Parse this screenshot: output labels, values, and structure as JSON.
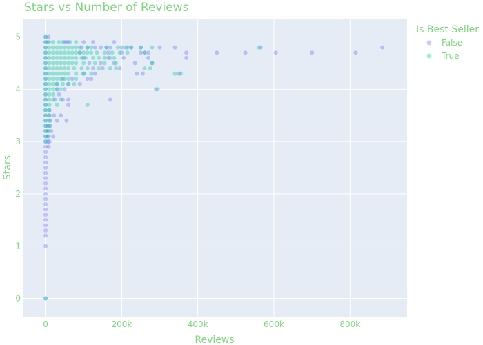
{
  "chart_data": {
    "type": "scatter",
    "title": "Stars vs Number of Reviews",
    "xlabel": "Reviews",
    "ylabel": "Stars",
    "xlim": [
      -60000,
      950000
    ],
    "ylim": [
      -0.35,
      5.35
    ],
    "xticks": [
      0,
      200000,
      400000,
      600000,
      800000
    ],
    "xtick_labels": [
      "0",
      "200k",
      "400k",
      "600k",
      "800k"
    ],
    "yticks": [
      0,
      1,
      2,
      3,
      4,
      5
    ],
    "ytick_labels": [
      "0",
      "1",
      "2",
      "3",
      "4",
      "5"
    ],
    "grid": true,
    "legend": {
      "title": "Is Best Seller",
      "placement": "top-right"
    },
    "series": [
      {
        "name": "False",
        "color": "#636efa",
        "points": [
          [
            0,
            5.0
          ],
          [
            0,
            4.9
          ],
          [
            0,
            4.8
          ],
          [
            0,
            4.7
          ],
          [
            0,
            4.6
          ],
          [
            0,
            4.5
          ],
          [
            0,
            4.4
          ],
          [
            0,
            4.3
          ],
          [
            0,
            4.2
          ],
          [
            0,
            4.1
          ],
          [
            0,
            4.0
          ],
          [
            0,
            3.9
          ],
          [
            0,
            3.8
          ],
          [
            0,
            3.7
          ],
          [
            0,
            3.6
          ],
          [
            0,
            3.5
          ],
          [
            0,
            3.4
          ],
          [
            0,
            3.3
          ],
          [
            0,
            3.2
          ],
          [
            0,
            3.1
          ],
          [
            0,
            3.0
          ],
          [
            0,
            2.9
          ],
          [
            0,
            2.8
          ],
          [
            0,
            2.7
          ],
          [
            0,
            2.6
          ],
          [
            0,
            2.5
          ],
          [
            0,
            2.4
          ],
          [
            0,
            2.3
          ],
          [
            0,
            2.2
          ],
          [
            0,
            2.1
          ],
          [
            0,
            2.0
          ],
          [
            0,
            1.9
          ],
          [
            0,
            1.8
          ],
          [
            0,
            1.7
          ],
          [
            0,
            1.6
          ],
          [
            0,
            1.5
          ],
          [
            0,
            1.4
          ],
          [
            0,
            1.3
          ],
          [
            0,
            1.2
          ],
          [
            0,
            1.0
          ],
          [
            0,
            0.0
          ],
          [
            8000,
            5.0
          ],
          [
            5000,
            4.9
          ],
          [
            5000,
            3.3
          ],
          [
            5000,
            3.2
          ],
          [
            5000,
            3.1
          ],
          [
            6000,
            3.0
          ],
          [
            8000,
            2.9
          ],
          [
            10000,
            3.0
          ],
          [
            10000,
            3.6
          ],
          [
            10000,
            3.5
          ],
          [
            12000,
            3.4
          ],
          [
            12000,
            3.3
          ],
          [
            15000,
            3.2
          ],
          [
            20000,
            3.1
          ],
          [
            22000,
            3.5
          ],
          [
            30000,
            3.4
          ],
          [
            40000,
            3.5
          ],
          [
            55000,
            3.4
          ],
          [
            25000,
            3.8
          ],
          [
            45000,
            3.8
          ],
          [
            60000,
            3.7
          ],
          [
            35000,
            3.9
          ],
          [
            60000,
            3.8
          ],
          [
            30000,
            4.0
          ],
          [
            50000,
            4.0
          ],
          [
            30000,
            4.1
          ],
          [
            60000,
            4.1
          ],
          [
            45000,
            4.2
          ],
          [
            70000,
            4.2
          ],
          [
            55000,
            4.9
          ],
          [
            60000,
            4.9
          ],
          [
            50000,
            4.9
          ],
          [
            95000,
            4.8
          ],
          [
            100000,
            4.9
          ],
          [
            110000,
            4.8
          ],
          [
            125000,
            4.9
          ],
          [
            130000,
            4.8
          ],
          [
            145000,
            4.8
          ],
          [
            160000,
            4.8
          ],
          [
            170000,
            4.8
          ],
          [
            180000,
            4.9
          ],
          [
            200000,
            4.8
          ],
          [
            225000,
            4.8
          ],
          [
            250000,
            4.7
          ],
          [
            260000,
            4.7
          ],
          [
            270000,
            4.7
          ],
          [
            250000,
            4.8
          ],
          [
            300000,
            4.8
          ],
          [
            340000,
            4.8
          ],
          [
            370000,
            4.6
          ],
          [
            370000,
            4.7
          ],
          [
            90000,
            4.7
          ],
          [
            100000,
            4.6
          ],
          [
            115000,
            4.5
          ],
          [
            125000,
            4.4
          ],
          [
            130000,
            4.3
          ],
          [
            145000,
            4.5
          ],
          [
            150000,
            4.4
          ],
          [
            165000,
            4.6
          ],
          [
            165000,
            4.7
          ],
          [
            180000,
            4.5
          ],
          [
            195000,
            4.4
          ],
          [
            200000,
            4.7
          ],
          [
            205000,
            4.6
          ],
          [
            215000,
            4.8
          ],
          [
            235000,
            4.5
          ],
          [
            240000,
            4.3
          ],
          [
            255000,
            4.3
          ],
          [
            270000,
            4.6
          ],
          [
            280000,
            4.5
          ],
          [
            350000,
            4.3
          ],
          [
            110000,
            4.2
          ],
          [
            120000,
            4.2
          ],
          [
            90000,
            4.1
          ],
          [
            100000,
            4.3
          ],
          [
            170000,
            3.8
          ],
          [
            290000,
            4.0
          ],
          [
            450000,
            4.7
          ],
          [
            525000,
            4.7
          ],
          [
            565000,
            4.8
          ],
          [
            605000,
            4.7
          ],
          [
            700000,
            4.7
          ],
          [
            815000,
            4.7
          ],
          [
            885000,
            4.8
          ]
        ]
      },
      {
        "name": "True",
        "color": "#00cc96",
        "points": [
          [
            0,
            5.0
          ],
          [
            0,
            4.9
          ],
          [
            0,
            4.8
          ],
          [
            0,
            4.7
          ],
          [
            0,
            4.6
          ],
          [
            0,
            4.5
          ],
          [
            0,
            4.4
          ],
          [
            0,
            4.3
          ],
          [
            0,
            4.2
          ],
          [
            0,
            4.1
          ],
          [
            0,
            4.0
          ],
          [
            0,
            3.9
          ],
          [
            0,
            3.8
          ],
          [
            0,
            3.7
          ],
          [
            0,
            3.6
          ],
          [
            0,
            3.5
          ],
          [
            0,
            3.4
          ],
          [
            0,
            3.3
          ],
          [
            0,
            3.2
          ],
          [
            0,
            3.1
          ],
          [
            0,
            3.0
          ],
          [
            0,
            0.0
          ],
          [
            10000,
            4.9
          ],
          [
            20000,
            4.9
          ],
          [
            35000,
            4.9
          ],
          [
            45000,
            4.9
          ],
          [
            65000,
            4.9
          ],
          [
            80000,
            4.9
          ],
          [
            10000,
            4.8
          ],
          [
            20000,
            4.8
          ],
          [
            30000,
            4.8
          ],
          [
            40000,
            4.8
          ],
          [
            50000,
            4.8
          ],
          [
            60000,
            4.8
          ],
          [
            70000,
            4.8
          ],
          [
            80000,
            4.8
          ],
          [
            90000,
            4.8
          ],
          [
            110000,
            4.8
          ],
          [
            120000,
            4.8
          ],
          [
            160000,
            4.8
          ],
          [
            190000,
            4.8
          ],
          [
            210000,
            4.8
          ],
          [
            225000,
            4.8
          ],
          [
            250000,
            4.8
          ],
          [
            280000,
            4.8
          ],
          [
            560000,
            4.8
          ],
          [
            10000,
            4.7
          ],
          [
            20000,
            4.7
          ],
          [
            30000,
            4.7
          ],
          [
            40000,
            4.7
          ],
          [
            50000,
            4.7
          ],
          [
            60000,
            4.7
          ],
          [
            70000,
            4.7
          ],
          [
            80000,
            4.7
          ],
          [
            90000,
            4.7
          ],
          [
            100000,
            4.7
          ],
          [
            110000,
            4.7
          ],
          [
            120000,
            4.7
          ],
          [
            135000,
            4.7
          ],
          [
            155000,
            4.7
          ],
          [
            175000,
            4.7
          ],
          [
            195000,
            4.7
          ],
          [
            215000,
            4.7
          ],
          [
            260000,
            4.7
          ],
          [
            10000,
            4.6
          ],
          [
            20000,
            4.6
          ],
          [
            30000,
            4.6
          ],
          [
            40000,
            4.6
          ],
          [
            50000,
            4.6
          ],
          [
            60000,
            4.6
          ],
          [
            70000,
            4.6
          ],
          [
            80000,
            4.6
          ],
          [
            95000,
            4.6
          ],
          [
            105000,
            4.6
          ],
          [
            125000,
            4.6
          ],
          [
            140000,
            4.6
          ],
          [
            155000,
            4.6
          ],
          [
            170000,
            4.6
          ],
          [
            180000,
            4.6
          ],
          [
            10000,
            4.5
          ],
          [
            20000,
            4.5
          ],
          [
            30000,
            4.5
          ],
          [
            40000,
            4.5
          ],
          [
            50000,
            4.5
          ],
          [
            60000,
            4.5
          ],
          [
            70000,
            4.5
          ],
          [
            80000,
            4.5
          ],
          [
            100000,
            4.5
          ],
          [
            130000,
            4.5
          ],
          [
            155000,
            4.5
          ],
          [
            185000,
            4.5
          ],
          [
            280000,
            4.5
          ],
          [
            10000,
            4.4
          ],
          [
            20000,
            4.4
          ],
          [
            30000,
            4.4
          ],
          [
            40000,
            4.4
          ],
          [
            50000,
            4.4
          ],
          [
            60000,
            4.4
          ],
          [
            75000,
            4.4
          ],
          [
            95000,
            4.4
          ],
          [
            110000,
            4.4
          ],
          [
            140000,
            4.4
          ],
          [
            170000,
            4.4
          ],
          [
            185000,
            4.4
          ],
          [
            260000,
            4.4
          ],
          [
            275000,
            4.4
          ],
          [
            10000,
            4.3
          ],
          [
            20000,
            4.3
          ],
          [
            30000,
            4.3
          ],
          [
            40000,
            4.3
          ],
          [
            50000,
            4.3
          ],
          [
            60000,
            4.3
          ],
          [
            80000,
            4.3
          ],
          [
            100000,
            4.3
          ],
          [
            120000,
            4.3
          ],
          [
            340000,
            4.3
          ],
          [
            355000,
            4.3
          ],
          [
            10000,
            4.2
          ],
          [
            20000,
            4.2
          ],
          [
            30000,
            4.2
          ],
          [
            40000,
            4.2
          ],
          [
            50000,
            4.2
          ],
          [
            60000,
            4.2
          ],
          [
            80000,
            4.2
          ],
          [
            10000,
            4.1
          ],
          [
            20000,
            4.1
          ],
          [
            30000,
            4.1
          ],
          [
            45000,
            4.1
          ],
          [
            60000,
            4.1
          ],
          [
            75000,
            4.1
          ],
          [
            10000,
            4.0
          ],
          [
            20000,
            4.0
          ],
          [
            30000,
            4.0
          ],
          [
            40000,
            4.0
          ],
          [
            295000,
            4.0
          ],
          [
            10000,
            3.9
          ],
          [
            20000,
            3.9
          ],
          [
            10000,
            3.8
          ],
          [
            20000,
            3.8
          ],
          [
            40000,
            3.8
          ],
          [
            10000,
            3.7
          ],
          [
            30000,
            3.7
          ],
          [
            110000,
            3.7
          ],
          [
            10000,
            3.6
          ],
          [
            10000,
            3.5
          ],
          [
            10000,
            3.4
          ],
          [
            10000,
            3.3
          ],
          [
            8000,
            3.2
          ],
          [
            8000,
            3.1
          ]
        ]
      }
    ]
  }
}
